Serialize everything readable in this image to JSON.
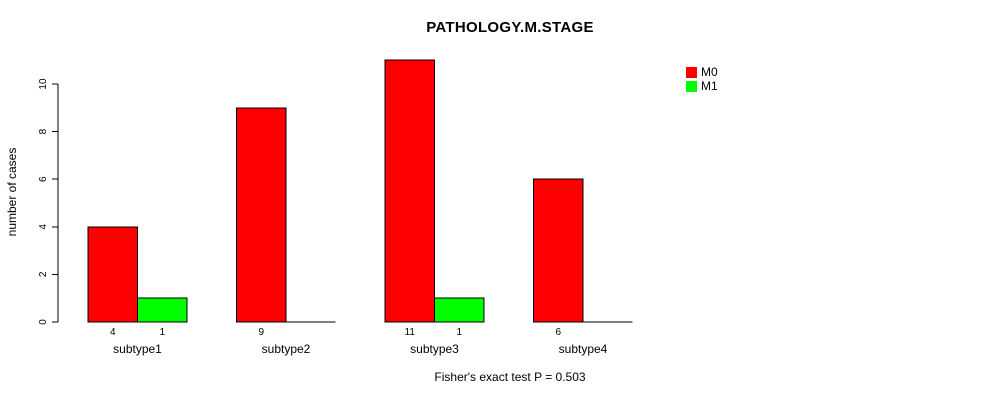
{
  "title": "PATHOLOGY.M.STAGE",
  "y_axis_label": "number of cases",
  "footer": "Fisher's exact test P = 0.503",
  "legend": [
    {
      "label": "M0",
      "color": "#ff0000"
    },
    {
      "label": "M1",
      "color": "#00ff00"
    }
  ],
  "chart_data": {
    "type": "bar",
    "title": "PATHOLOGY.M.STAGE",
    "xlabel": "",
    "ylabel": "number of cases",
    "categories": [
      "subtype1",
      "subtype2",
      "subtype3",
      "subtype4"
    ],
    "series": [
      {
        "name": "M0",
        "color": "#ff0000",
        "values": [
          4,
          9,
          11,
          6
        ]
      },
      {
        "name": "M1",
        "color": "#00ff00",
        "values": [
          1,
          0,
          1,
          0
        ]
      }
    ],
    "bar_value_labels": [
      [
        "4",
        "9",
        "11",
        "6"
      ],
      [
        "1",
        "",
        "1",
        ""
      ]
    ],
    "yticks": [
      0,
      2,
      4,
      6,
      8,
      10
    ],
    "ylim": [
      0,
      11
    ],
    "grid": false,
    "legend_position": "right",
    "annotation": "Fisher's exact test P = 0.503"
  }
}
